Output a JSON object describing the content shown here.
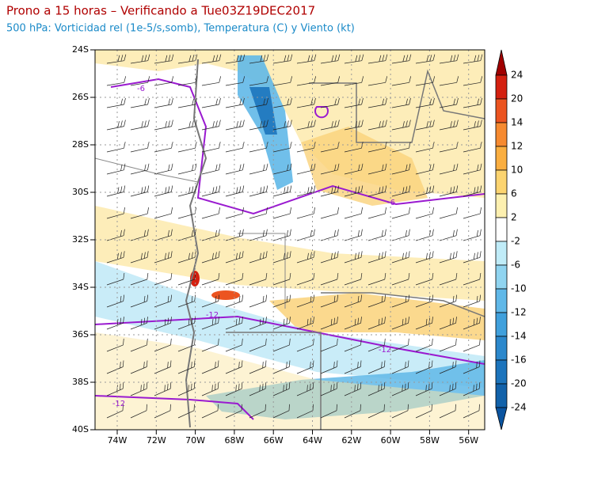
{
  "header": {
    "title": "Prono a 15 horas – Verificando a Tue03Z19DEC2017",
    "subtitle": "500 hPa: Vorticidad rel (1e-5/s,somb), Temperatura (C) y Viento (kt)"
  },
  "map": {
    "lat_labels": [
      "24S",
      "26S",
      "28S",
      "30S",
      "32S",
      "34S",
      "36S",
      "38S",
      "40S"
    ],
    "lon_labels": [
      "74W",
      "72W",
      "70W",
      "68W",
      "66W",
      "64W",
      "62W",
      "60W",
      "58W",
      "56W"
    ],
    "contour_labels": [
      "-6",
      "-6",
      "-12",
      "-12",
      "-12"
    ]
  },
  "colorbar": {
    "labels": [
      24,
      20,
      14,
      12,
      10,
      6,
      2,
      -2,
      -6,
      -10,
      -12,
      -14,
      -16,
      -20,
      -24
    ],
    "colors": [
      "#a00000",
      "#d42010",
      "#ec5420",
      "#f68a30",
      "#faae40",
      "#fcd470",
      "#fdf0b0",
      "#ffffff",
      "#c0ecf8",
      "#90d4f0",
      "#60b8e8",
      "#40a0dc",
      "#2c88cc",
      "#1c74bc",
      "#1262aa",
      "#0a54a0"
    ]
  }
}
